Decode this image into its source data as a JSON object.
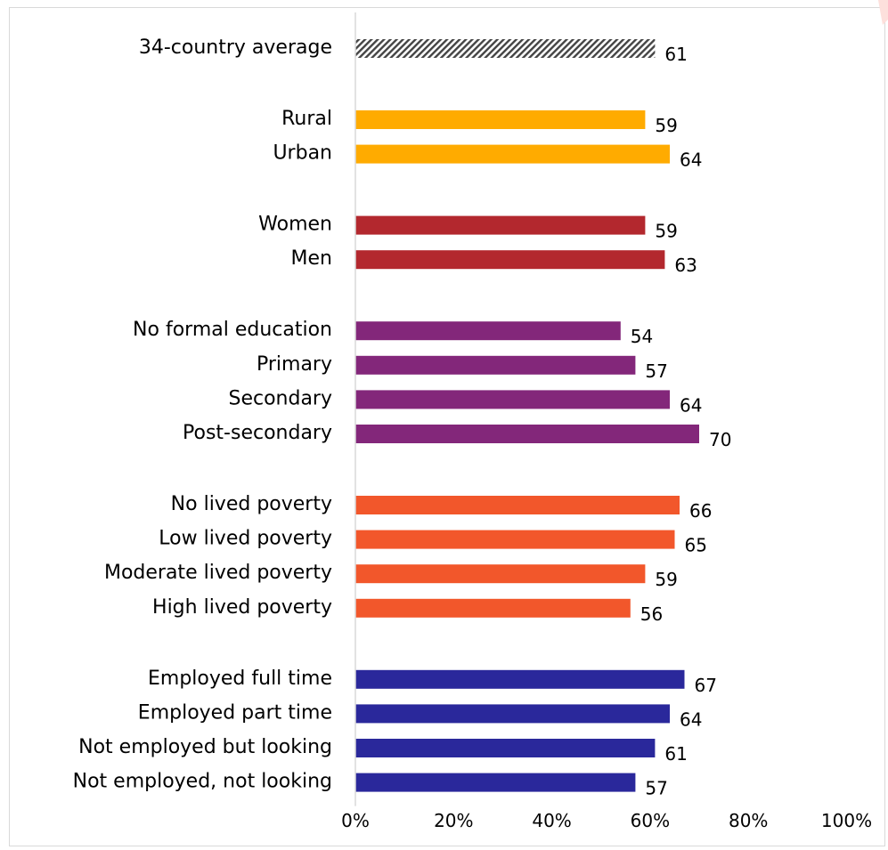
{
  "chart_data": {
    "type": "bar",
    "orientation": "horizontal",
    "title": "",
    "xlabel": "",
    "ylabel": "",
    "xlim": [
      0,
      100
    ],
    "x_ticks": [
      "0%",
      "20%",
      "40%",
      "60%",
      "80%",
      "100%"
    ],
    "grid": false,
    "groups": [
      {
        "color": "#444444",
        "pattern": "hatch",
        "items": [
          {
            "label": "34-country average",
            "value": 61
          }
        ]
      },
      {
        "color": "#FFAB00",
        "items": [
          {
            "label": "Rural",
            "value": 59
          },
          {
            "label": "Urban",
            "value": 64
          }
        ]
      },
      {
        "color": "#B3282E",
        "items": [
          {
            "label": "Women",
            "value": 59
          },
          {
            "label": "Men",
            "value": 63
          }
        ]
      },
      {
        "color": "#83277A",
        "items": [
          {
            "label": "No formal education",
            "value": 54
          },
          {
            "label": "Primary",
            "value": 57
          },
          {
            "label": "Secondary",
            "value": 64
          },
          {
            "label": "Post-secondary",
            "value": 70
          }
        ]
      },
      {
        "color": "#F2572B",
        "items": [
          {
            "label": "No lived poverty",
            "value": 66
          },
          {
            "label": "Low lived poverty",
            "value": 65
          },
          {
            "label": "Moderate lived poverty",
            "value": 59
          },
          {
            "label": "High lived poverty",
            "value": 56
          }
        ]
      },
      {
        "color": "#2A289B",
        "items": [
          {
            "label": "Employed full time",
            "value": 67
          },
          {
            "label": "Employed part time",
            "value": 64
          },
          {
            "label": "Not employed but looking",
            "value": 61
          },
          {
            "label": "Not employed, not looking",
            "value": 57
          }
        ]
      }
    ]
  }
}
